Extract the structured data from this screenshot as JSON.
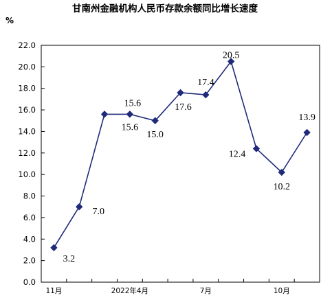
{
  "chart_data": {
    "type": "line",
    "title": "甘南州金融机构人民币存款余额同比增长速度",
    "ylabel": "%",
    "xlabel": "",
    "ylim": [
      0,
      22
    ],
    "yticks": [
      "0.0",
      "2.0",
      "4.0",
      "6.0",
      "8.0",
      "10.0",
      "12.0",
      "14.0",
      "16.0",
      "18.0",
      "20.0",
      "22.0"
    ],
    "categories": [
      "11月",
      "",
      "",
      "2022年4月",
      "",
      "",
      "7月",
      "",
      "",
      "10月",
      ""
    ],
    "series": [
      {
        "values": [
          3.2,
          7.0,
          15.6,
          15.6,
          15.0,
          17.6,
          17.4,
          20.5,
          12.4,
          10.2,
          13.9
        ],
        "labels": [
          "3.2",
          "7.0",
          "15.6",
          "15.6",
          "15.0",
          "17.6",
          "17.4",
          "20.5",
          "12.4",
          "10.2",
          "13.9"
        ]
      }
    ],
    "grid": false,
    "color": "#1f2a7a"
  }
}
